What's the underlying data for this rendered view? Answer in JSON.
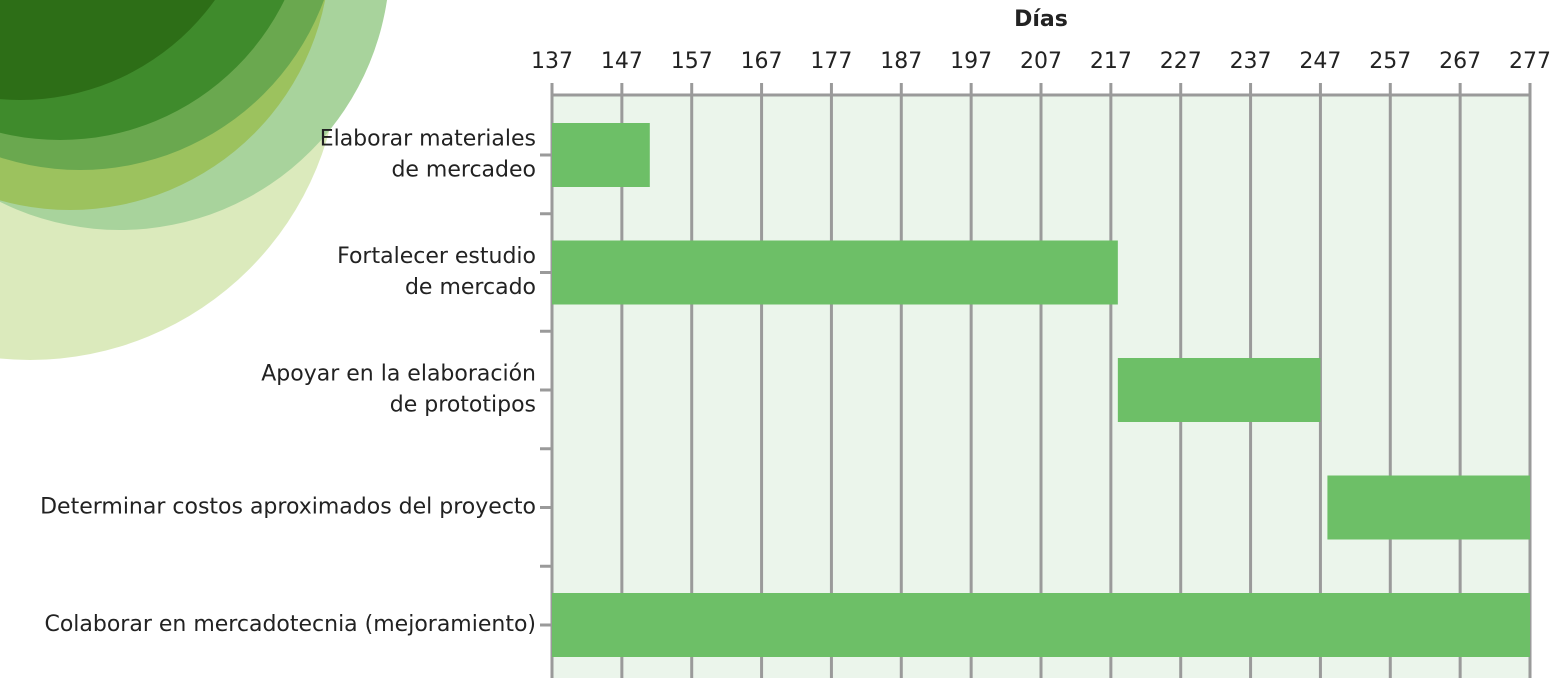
{
  "chart_data": {
    "type": "gantt",
    "xlabel": "Días",
    "tasks": [
      {
        "label": [
          "Elaborar materiales",
          "de mercadeo"
        ],
        "start": 137,
        "end": 151
      },
      {
        "label": [
          "Fortalecer estudio",
          "de mercado"
        ],
        "start": 137,
        "end": 218
      },
      {
        "label": [
          "Apoyar en la elaboración",
          "de prototipos"
        ],
        "start": 218,
        "end": 247
      },
      {
        "label": [
          "Determinar costos aproximados del proyecto"
        ],
        "start": 248,
        "end": 277
      },
      {
        "label": [
          "Colaborar en mercadotecnia (mejoramiento)"
        ],
        "start": 137,
        "end": 277
      }
    ],
    "color": "#6dbf67",
    "xlim": [
      137,
      277
    ],
    "xticks": [
      137,
      147,
      157,
      167,
      177,
      187,
      197,
      207,
      217,
      227,
      237,
      247,
      257,
      267,
      277
    ],
    "grid": true
  }
}
